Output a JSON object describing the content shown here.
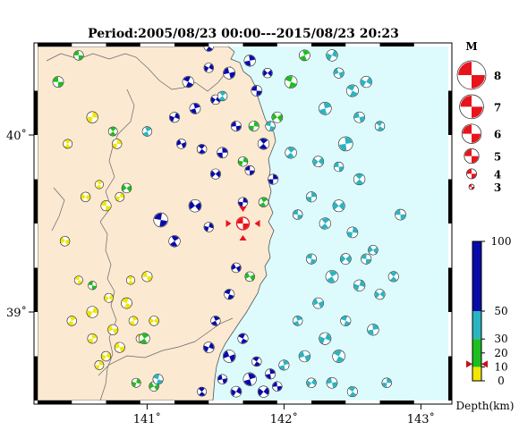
{
  "title": "Period:2005/08/23 00:00---2015/08/23 20:23",
  "map": {
    "lon_range": [
      140.2,
      143.2
    ],
    "lat_range": [
      38.5,
      40.5
    ],
    "lon_ticks": [
      {
        "value": 141,
        "label": "141˚"
      },
      {
        "value": 142,
        "label": "142˚"
      },
      {
        "value": 143,
        "label": "143˚"
      }
    ],
    "lat_ticks": [
      {
        "value": 39,
        "label": "39˚"
      },
      {
        "value": 40,
        "label": "40˚"
      }
    ],
    "colors": {
      "land": "#fbe9d2",
      "sea": "#ddfbfd",
      "coast": "#555555",
      "prefecture_border": "#666666"
    }
  },
  "event": {
    "lon": 141.7,
    "lat": 39.5,
    "color": "#e8141c",
    "marker": "star-mechanism"
  },
  "magnitude_legend": {
    "title": "M",
    "items": [
      {
        "label": "8",
        "magnitude": 8
      },
      {
        "label": "7",
        "magnitude": 7
      },
      {
        "label": "6",
        "magnitude": 6
      },
      {
        "label": "5",
        "magnitude": 5
      },
      {
        "label": "4",
        "magnitude": 4
      },
      {
        "label": "3",
        "magnitude": 3
      }
    ],
    "color": "#e8141c"
  },
  "depth_scale": {
    "label": "Depth(km)",
    "ticks": [
      "100",
      "50",
      "30",
      "20",
      "10",
      "0"
    ],
    "tick_values": [
      100,
      50,
      30,
      20,
      10,
      0
    ],
    "colors": [
      {
        "from": 0,
        "to": 10,
        "color": "#f2e600"
      },
      {
        "from": 10,
        "to": 30,
        "color": "#1ebe1e"
      },
      {
        "from": 30,
        "to": 50,
        "color": "#2ab4c2"
      },
      {
        "from": 50,
        "to": 100,
        "color": "#0a0aa8"
      }
    ],
    "marker_value": 12
  },
  "mechanisms": [
    [
      140.35,
      40.3,
      4.2,
      14
    ],
    [
      140.42,
      39.95,
      3.9,
      8
    ],
    [
      140.6,
      40.1,
      4.3,
      6
    ],
    [
      140.55,
      39.65,
      4.0,
      5
    ],
    [
      140.7,
      39.6,
      4.1,
      5
    ],
    [
      140.65,
      39.72,
      3.8,
      4
    ],
    [
      140.8,
      39.65,
      3.9,
      5
    ],
    [
      140.4,
      39.4,
      4.0,
      3
    ],
    [
      140.5,
      39.18,
      3.8,
      4
    ],
    [
      140.45,
      38.95,
      4.0,
      6
    ],
    [
      140.6,
      39.0,
      4.3,
      8
    ],
    [
      140.75,
      38.9,
      4.1,
      5
    ],
    [
      140.85,
      39.05,
      4.2,
      7
    ],
    [
      140.9,
      38.95,
      3.9,
      6
    ],
    [
      140.7,
      38.75,
      4.0,
      5
    ],
    [
      140.8,
      38.8,
      4.1,
      5
    ],
    [
      140.95,
      38.85,
      3.8,
      6
    ],
    [
      140.6,
      38.85,
      4.0,
      7
    ],
    [
      140.72,
      39.08,
      3.9,
      5
    ],
    [
      141.0,
      39.2,
      4.1,
      4
    ],
    [
      140.88,
      39.18,
      3.8,
      3
    ],
    [
      140.65,
      38.7,
      3.9,
      4
    ],
    [
      141.05,
      38.95,
      4.0,
      6
    ],
    [
      140.5,
      40.45,
      4.0,
      12
    ],
    [
      140.75,
      40.02,
      3.9,
      18
    ],
    [
      140.78,
      39.95,
      4.0,
      7
    ],
    [
      140.85,
      39.7,
      4.0,
      14
    ],
    [
      140.6,
      39.15,
      3.8,
      16
    ],
    [
      140.98,
      38.85,
      4.2,
      15
    ],
    [
      140.92,
      38.6,
      3.9,
      14
    ],
    [
      141.05,
      38.58,
      4.0,
      22
    ],
    [
      141.08,
      38.62,
      4.1,
      35
    ],
    [
      141.0,
      40.02,
      4.0,
      45
    ],
    [
      141.2,
      40.1,
      4.1,
      60
    ],
    [
      141.25,
      39.95,
      4.0,
      55
    ],
    [
      141.3,
      40.3,
      4.3,
      70
    ],
    [
      141.35,
      40.15,
      4.2,
      60
    ],
    [
      141.45,
      40.38,
      4.0,
      80
    ],
    [
      141.6,
      40.35,
      4.4,
      70
    ],
    [
      141.45,
      40.5,
      4.0,
      55
    ],
    [
      141.75,
      40.42,
      4.3,
      60
    ],
    [
      141.5,
      40.2,
      4.0,
      75
    ],
    [
      141.65,
      40.05,
      4.1,
      65
    ],
    [
      141.4,
      39.92,
      4.0,
      60
    ],
    [
      141.55,
      39.9,
      4.2,
      70
    ],
    [
      141.5,
      39.78,
      4.1,
      60
    ],
    [
      141.75,
      39.8,
      4.0,
      65
    ],
    [
      141.85,
      39.95,
      4.3,
      80
    ],
    [
      141.7,
      39.62,
      4.0,
      60
    ],
    [
      141.35,
      39.6,
      4.5,
      70
    ],
    [
      141.1,
      39.52,
      4.8,
      80
    ],
    [
      141.2,
      39.4,
      4.3,
      75
    ],
    [
      141.45,
      39.48,
      4.0,
      60
    ],
    [
      141.65,
      39.25,
      4.0,
      70
    ],
    [
      141.6,
      39.1,
      4.1,
      65
    ],
    [
      141.5,
      38.95,
      4.0,
      60
    ],
    [
      141.45,
      38.8,
      4.2,
      70
    ],
    [
      141.6,
      38.75,
      4.5,
      75
    ],
    [
      141.7,
      38.85,
      4.1,
      60
    ],
    [
      141.75,
      38.62,
      4.6,
      65
    ],
    [
      141.65,
      38.55,
      4.2,
      70
    ],
    [
      141.55,
      38.62,
      4.0,
      60
    ],
    [
      141.8,
      38.72,
      4.0,
      55
    ],
    [
      141.9,
      38.65,
      4.1,
      60
    ],
    [
      141.85,
      38.55,
      4.3,
      80
    ],
    [
      141.95,
      38.58,
      4.0,
      65
    ],
    [
      141.4,
      38.55,
      3.9,
      60
    ],
    [
      141.92,
      39.75,
      4.1,
      65
    ],
    [
      141.88,
      40.35,
      4.0,
      60
    ],
    [
      141.8,
      40.25,
      4.2,
      60
    ],
    [
      141.55,
      40.22,
      4.0,
      40
    ],
    [
      141.78,
      40.05,
      4.1,
      25
    ],
    [
      141.95,
      40.1,
      4.2,
      20
    ],
    [
      141.9,
      40.05,
      4.0,
      35
    ],
    [
      141.85,
      39.62,
      4.0,
      15
    ],
    [
      141.7,
      39.85,
      4.0,
      25
    ],
    [
      141.75,
      39.2,
      4.0,
      22
    ],
    [
      142.05,
      40.3,
      4.5,
      20
    ],
    [
      142.15,
      40.45,
      4.2,
      15
    ],
    [
      142.35,
      40.45,
      4.3,
      45
    ],
    [
      142.4,
      40.35,
      4.1,
      40
    ],
    [
      142.5,
      40.25,
      4.4,
      48
    ],
    [
      142.3,
      40.15,
      4.5,
      42
    ],
    [
      142.6,
      40.3,
      4.3,
      45
    ],
    [
      142.55,
      40.1,
      4.2,
      47
    ],
    [
      142.7,
      40.05,
      4.0,
      40
    ],
    [
      142.45,
      39.95,
      4.8,
      45
    ],
    [
      142.25,
      39.85,
      4.2,
      40
    ],
    [
      142.4,
      39.82,
      4.0,
      35
    ],
    [
      142.55,
      39.75,
      4.3,
      42
    ],
    [
      142.2,
      39.65,
      4.1,
      48
    ],
    [
      142.4,
      39.6,
      4.4,
      45
    ],
    [
      142.1,
      39.55,
      4.0,
      42
    ],
    [
      142.3,
      39.5,
      4.3,
      40
    ],
    [
      142.5,
      39.45,
      4.2,
      46
    ],
    [
      142.65,
      39.35,
      4.0,
      40
    ],
    [
      142.2,
      39.3,
      4.1,
      45
    ],
    [
      142.35,
      39.2,
      4.5,
      42
    ],
    [
      142.55,
      39.15,
      4.3,
      40
    ],
    [
      142.25,
      39.05,
      4.2,
      47
    ],
    [
      142.45,
      38.95,
      4.1,
      45
    ],
    [
      142.1,
      38.95,
      4.0,
      42
    ],
    [
      142.3,
      38.85,
      4.4,
      40
    ],
    [
      142.15,
      38.75,
      4.3,
      45
    ],
    [
      142.4,
      38.75,
      4.5,
      42
    ],
    [
      142.0,
      38.7,
      4.1,
      48
    ],
    [
      142.2,
      38.6,
      4.0,
      45
    ],
    [
      142.35,
      38.6,
      4.2,
      40
    ],
    [
      142.5,
      38.55,
      4.1,
      43
    ],
    [
      142.65,
      38.9,
      4.3,
      40
    ],
    [
      142.7,
      39.1,
      4.1,
      45
    ],
    [
      142.85,
      39.55,
      4.2,
      40
    ],
    [
      142.8,
      39.2,
      4.1,
      36
    ],
    [
      142.75,
      38.6,
      4.0,
      45
    ],
    [
      142.45,
      39.3,
      4.2,
      38
    ],
    [
      142.6,
      39.3,
      4.1,
      36
    ],
    [
      142.05,
      39.9,
      4.3,
      40
    ]
  ]
}
